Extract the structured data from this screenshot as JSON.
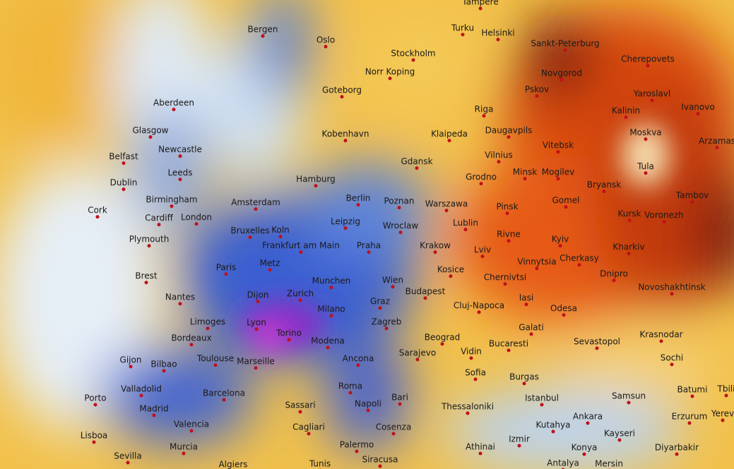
{
  "cities": [
    "Tampere",
    "Turku",
    "Helsinki",
    "Sankt-Peterburg",
    "Cherepovets",
    "Bergen",
    "Oslo",
    "Stockholm",
    "Norr Koping",
    "Goteborg",
    "Novgorod",
    "Pskov",
    "Yaroslavl",
    "Ivanovo",
    "Kalinin",
    "Aberdeen",
    "Riga",
    "Glasgow",
    "Kobenhavn",
    "Klaipeda",
    "Daugavpils",
    "Moskva",
    "Arzamas",
    "Vitebsk",
    "Newcastle",
    "Belfast",
    "Vilnius",
    "Gdansk",
    "Tula",
    "Leeds",
    "Dublin",
    "Hamburg",
    "Minsk",
    "Mogilev",
    "Grodno",
    "Bryansk",
    "Berlin",
    "Poznan",
    "Warszawa",
    "Tambov",
    "Birmingham",
    "Amsterdam",
    "Gomel",
    "Kursk",
    "Voronezh",
    "Cork",
    "Cardiff",
    "London",
    "Leipzig",
    "Pinsk",
    "Lublin",
    "Wroclaw",
    "Bruxelles",
    "Koln",
    "Rivne",
    "Plymouth",
    "Kyiv",
    "Frankfurt am Main",
    "Praha",
    "Krakow",
    "Lviv",
    "Kharkiv",
    "Cherkasy",
    "Vinnytsia",
    "Paris",
    "Metz",
    "Kosice",
    "Dnipro",
    "Brest",
    "Chernivtsi",
    "Munchen",
    "Wien",
    "Novoshakhtinsk",
    "Budapest",
    "Nantes",
    "Dijon",
    "Zurich",
    "Graz",
    "Iasi",
    "Cluj-Napoca",
    "Odesa",
    "Limoges",
    "Lyon",
    "Milano",
    "Zagreb",
    "Galati",
    "Krasnodar",
    "Bordeaux",
    "Torino",
    "Modena",
    "Beograd",
    "Vidin",
    "Bucaresti",
    "Sevastopol",
    "Gijon",
    "Bilbao",
    "Toulouse",
    "Marseille",
    "Ancona",
    "Sarajevo",
    "Sochi",
    "Sofia",
    "Burgas",
    "Valladolid",
    "Barcelona",
    "Roma",
    "Bari",
    "Istanbul",
    "Samsun",
    "Batumi",
    "Tbili",
    "Porto",
    "Madrid",
    "Sassari",
    "Napoli",
    "Thessaloniki",
    "Valencia",
    "Cagliari",
    "Cosenza",
    "Kutahya",
    "Ankara",
    "Erzurum",
    "Yerev",
    "Lisboa",
    "Kayseri",
    "Murcia",
    "Izmir",
    "Palermo",
    "Konya",
    "Diyarbakir",
    "Sevilla",
    "Algiers",
    "Tunis",
    "Siracusa",
    "Antalya",
    "Mersin",
    "Athinai"
  ]
}
